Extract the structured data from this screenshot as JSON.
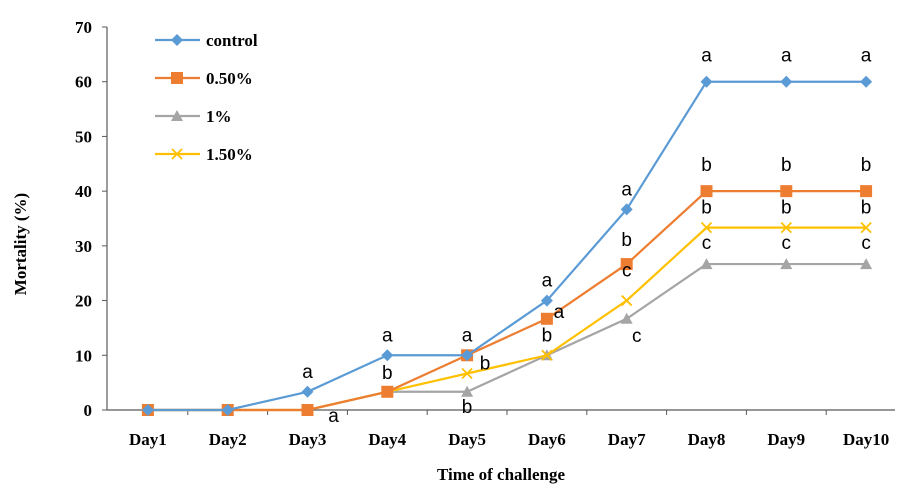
{
  "chart_data": {
    "type": "line",
    "xlabel": "Time of challenge",
    "ylabel": "Mortality (%)",
    "categories": [
      "Day1",
      "Day2",
      "Day3",
      "Day4",
      "Day5",
      "Day6",
      "Day7",
      "Day8",
      "Day9",
      "Day10"
    ],
    "ylim": [
      0,
      70
    ],
    "yticks": [
      "0",
      "10",
      "20",
      "30",
      "40",
      "50",
      "60",
      "70"
    ],
    "grid": false,
    "legend_position": "top-left",
    "series": [
      {
        "name": "control",
        "color": "#5B9BD5",
        "marker": "diamond",
        "values": [
          0,
          0,
          3.33,
          10,
          10,
          20,
          36.67,
          60,
          60,
          60
        ],
        "labels": [
          "",
          "",
          "a",
          "a",
          "a",
          "a",
          "a",
          "a",
          "a",
          "a"
        ]
      },
      {
        "name": "0.50%",
        "color": "#ED7D31",
        "marker": "square",
        "values": [
          0,
          0,
          0,
          3.33,
          10,
          16.67,
          26.67,
          40,
          40,
          40
        ],
        "labels": [
          "",
          "",
          "",
          "",
          "",
          "a",
          "b",
          "b",
          "b",
          "b"
        ]
      },
      {
        "name": "1%",
        "color": "#A5A5A5",
        "marker": "triangle",
        "values": [
          0,
          0,
          0,
          3.33,
          3.33,
          10,
          16.67,
          26.67,
          26.67,
          26.67
        ],
        "labels": [
          "",
          "",
          "a",
          "b",
          "b",
          "",
          "c",
          "c",
          "c",
          "c"
        ]
      },
      {
        "name": "1.50%",
        "color": "#FFC000",
        "marker": "x",
        "values": [
          0,
          0,
          0,
          3.33,
          6.67,
          10,
          20,
          33.33,
          33.33,
          33.33
        ],
        "labels": [
          "",
          "",
          "",
          "",
          "b",
          "b",
          "c",
          "b",
          "b",
          "b"
        ]
      }
    ]
  }
}
